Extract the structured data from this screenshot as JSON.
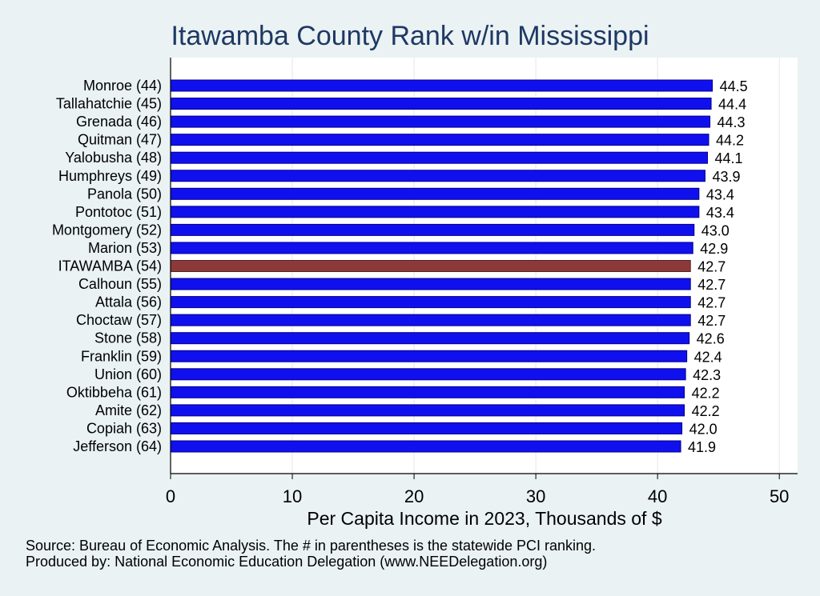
{
  "chart_data": {
    "type": "bar",
    "orientation": "horizontal",
    "title": "Itawamba County Rank w/in Mississippi",
    "xlabel": "Per Capita Income in 2023, Thousands of $",
    "ylabel": "",
    "xlim": [
      0,
      51.5
    ],
    "xticks": [
      0,
      10,
      20,
      30,
      40,
      50
    ],
    "grid": "vertical",
    "categories": [
      "Monroe (44)",
      "Tallahatchie (45)",
      "Grenada (46)",
      "Quitman (47)",
      "Yalobusha (48)",
      "Humphreys (49)",
      "Panola (50)",
      "Pontotoc (51)",
      "Montgomery (52)",
      "Marion (53)",
      "ITAWAMBA (54)",
      "Calhoun (55)",
      "Attala (56)",
      "Choctaw (57)",
      "Stone (58)",
      "Franklin (59)",
      "Union (60)",
      "Oktibbeha (61)",
      "Amite (62)",
      "Copiah (63)",
      "Jefferson (64)"
    ],
    "values": [
      44.5,
      44.4,
      44.3,
      44.2,
      44.1,
      43.9,
      43.4,
      43.4,
      43.0,
      42.9,
      42.7,
      42.7,
      42.7,
      42.7,
      42.6,
      42.4,
      42.3,
      42.2,
      42.2,
      42.0,
      41.9
    ],
    "value_labels": [
      "44.5",
      "44.4",
      "44.3",
      "44.2",
      "44.1",
      "43.9",
      "43.4",
      "43.4",
      "43.0",
      "42.9",
      "42.7",
      "42.7",
      "42.7",
      "42.7",
      "42.6",
      "42.4",
      "42.3",
      "42.2",
      "42.2",
      "42.0",
      "41.9"
    ],
    "highlight_category": "ITAWAMBA (54)",
    "colors": {
      "bar": "#1010ee",
      "highlight": "#8b3a3a",
      "bar_edge": "#00008b",
      "title": "#1f3864",
      "background": "#eaf2f3",
      "plot_background": "#ffffff"
    }
  },
  "footnotes": [
    "Source: Bureau of Economic Analysis. The # in parentheses is the statewide PCI ranking.",
    "Produced by: National Economic Education Delegation (www.NEEDelegation.org)"
  ]
}
